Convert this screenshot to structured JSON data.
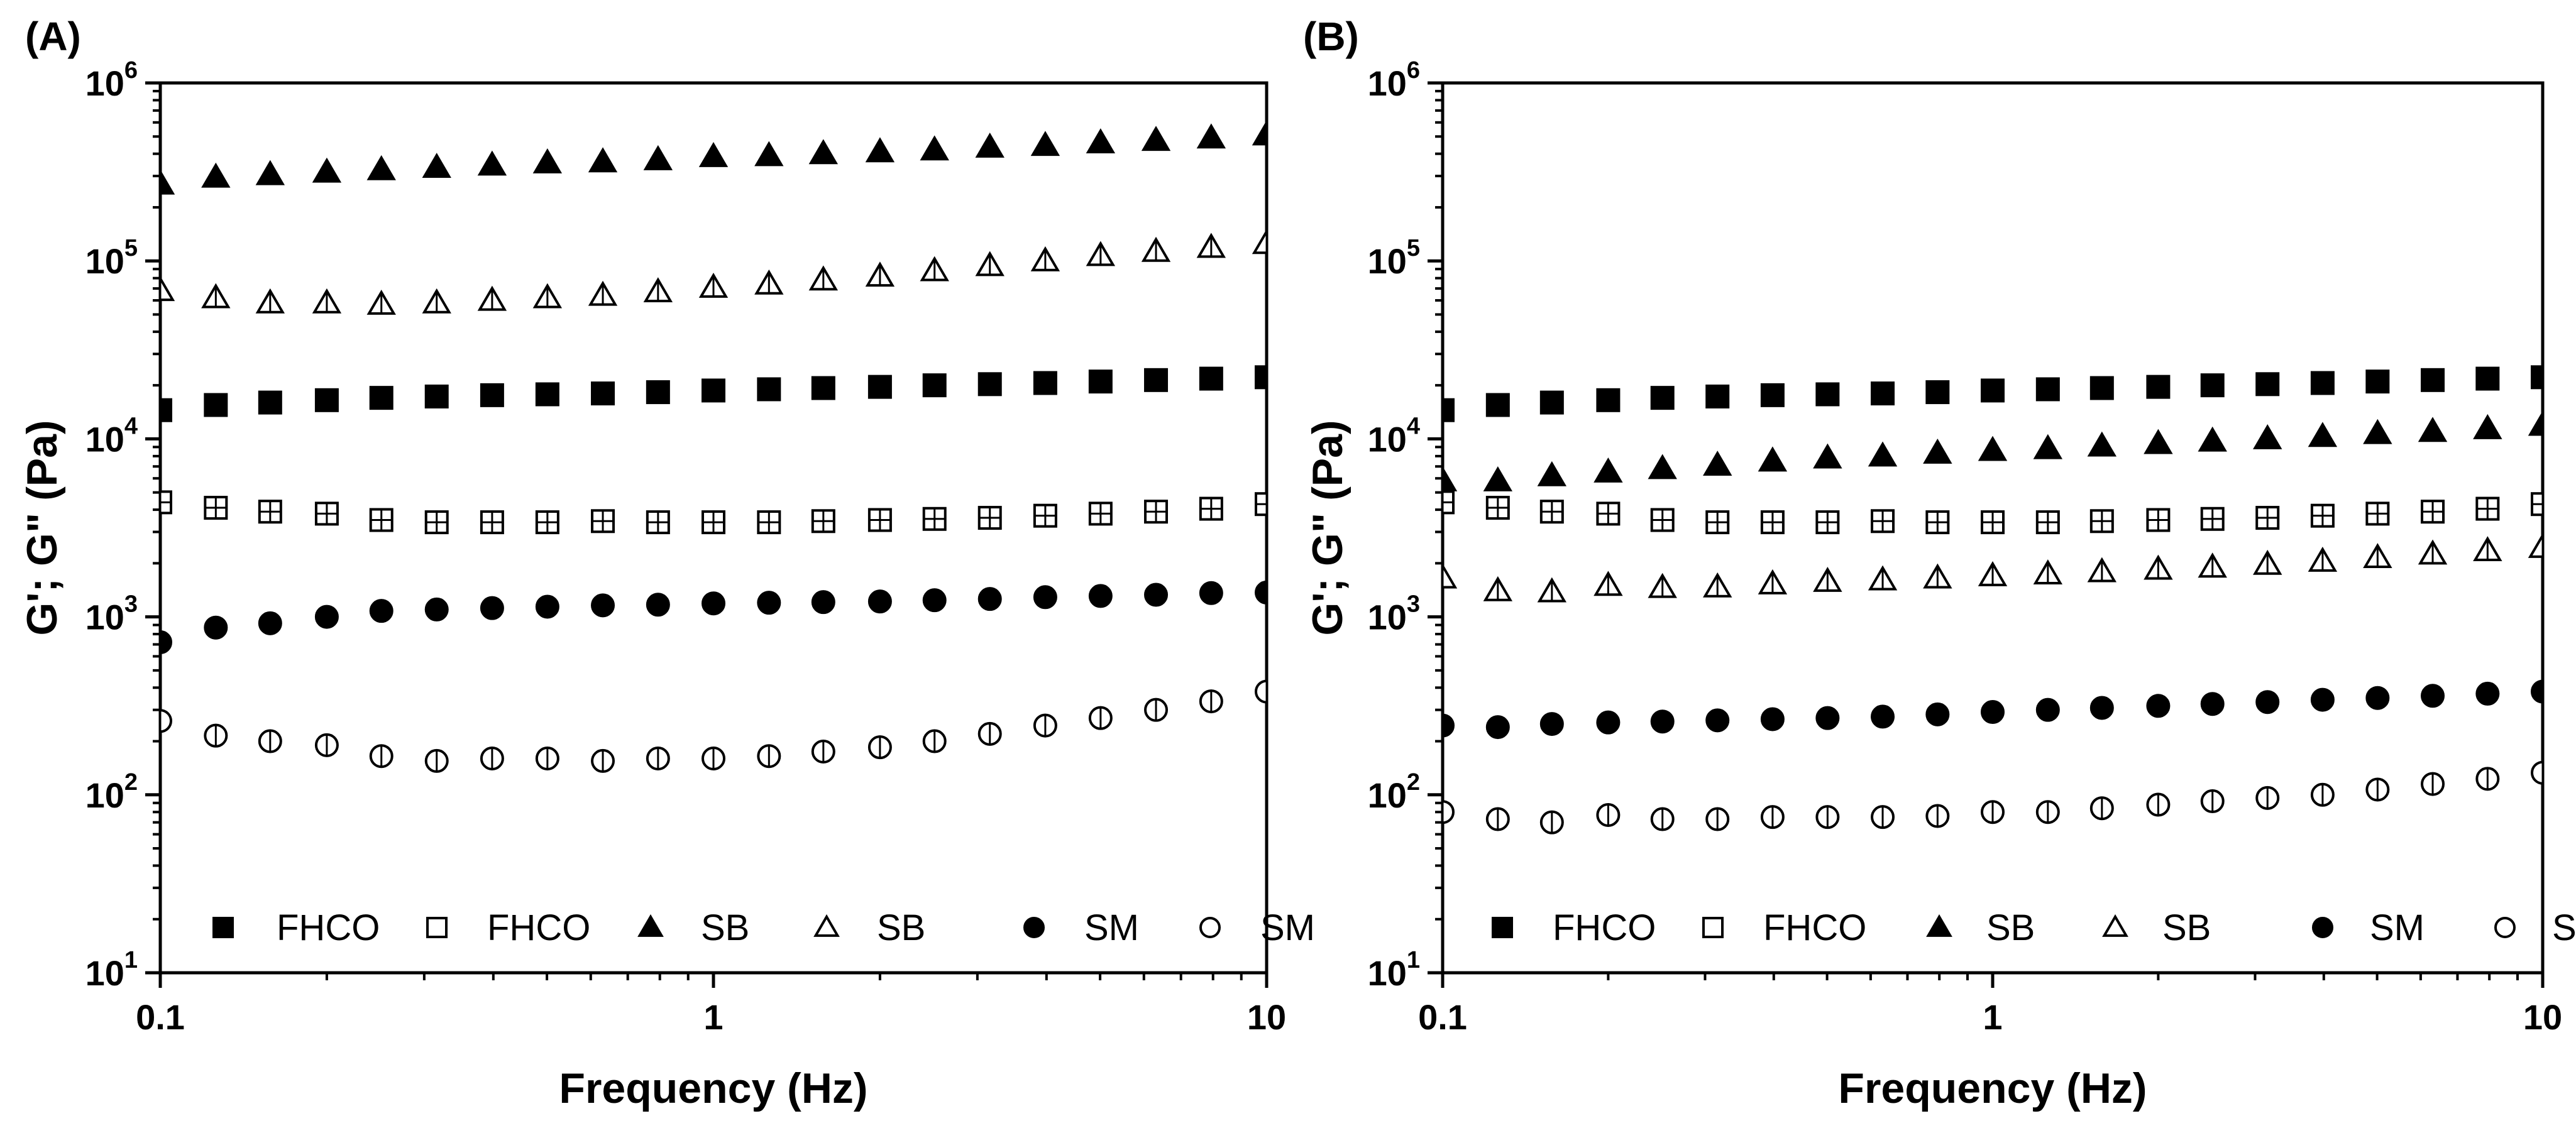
{
  "chart_data": [
    {
      "type": "scatter",
      "panel_label": "(A)",
      "xlabel": "Frequency (Hz)",
      "ylabel": "G'; G\" (Pa)",
      "xscale": "log",
      "yscale": "log",
      "xlim": [
        0.1,
        10
      ],
      "ylim": [
        10,
        1000000
      ],
      "xticks": [
        {
          "value": 0.1,
          "label": "0.1"
        },
        {
          "value": 1,
          "label": "1"
        },
        {
          "value": 10,
          "label": "10"
        }
      ],
      "yticks": [
        {
          "value": 10,
          "base": "10",
          "exp": "1"
        },
        {
          "value": 100,
          "base": "10",
          "exp": "2"
        },
        {
          "value": 1000,
          "base": "10",
          "exp": "3"
        },
        {
          "value": 10000,
          "base": "10",
          "exp": "4"
        },
        {
          "value": 100000,
          "base": "10",
          "exp": "5"
        },
        {
          "value": 1000000,
          "base": "10",
          "exp": "6"
        }
      ],
      "legend_position": "bottom",
      "x": [
        0.1,
        0.126,
        0.158,
        0.2,
        0.251,
        0.316,
        0.398,
        0.501,
        0.631,
        0.794,
        1.0,
        1.26,
        1.58,
        2.0,
        2.51,
        3.16,
        3.98,
        5.01,
        6.31,
        7.94,
        10.0
      ],
      "series": [
        {
          "name": "FHCO",
          "marker": "square",
          "filled": true,
          "values": [
            14500,
            15500,
            16000,
            16500,
            17000,
            17300,
            17600,
            17800,
            18000,
            18300,
            18700,
            19000,
            19300,
            19600,
            20000,
            20300,
            20600,
            21000,
            21400,
            21800,
            22200
          ]
        },
        {
          "name": "FHCO",
          "marker": "square",
          "filled": false,
          "values": [
            4400,
            4100,
            3900,
            3800,
            3500,
            3400,
            3400,
            3400,
            3450,
            3400,
            3400,
            3400,
            3450,
            3500,
            3550,
            3600,
            3700,
            3800,
            3900,
            4050,
            4300
          ]
        },
        {
          "name": "SB",
          "marker": "triangle",
          "filled": true,
          "values": [
            270000,
            295000,
            305000,
            315000,
            325000,
            335000,
            345000,
            355000,
            360000,
            370000,
            385000,
            390000,
            400000,
            410000,
            420000,
            435000,
            445000,
            460000,
            475000,
            490000,
            510000
          ]
        },
        {
          "name": "SB",
          "marker": "triangle",
          "filled": false,
          "values": [
            68000,
            62000,
            58000,
            58000,
            57000,
            58000,
            60000,
            62000,
            64000,
            67000,
            71000,
            74000,
            78000,
            82000,
            88000,
            94000,
            100000,
            107000,
            113000,
            119000,
            125000
          ]
        },
        {
          "name": "SM",
          "marker": "circle",
          "filled": true,
          "values": [
            720,
            870,
            920,
            1000,
            1080,
            1100,
            1120,
            1140,
            1160,
            1170,
            1190,
            1200,
            1210,
            1220,
            1240,
            1260,
            1290,
            1310,
            1330,
            1360,
            1370
          ]
        },
        {
          "name": "SM",
          "marker": "circle",
          "filled": false,
          "values": [
            260,
            215,
            200,
            190,
            165,
            155,
            160,
            160,
            155,
            160,
            160,
            165,
            175,
            185,
            200,
            220,
            245,
            270,
            300,
            335,
            380
          ]
        }
      ]
    },
    {
      "type": "scatter",
      "panel_label": "(B)",
      "xlabel": "Frequency (Hz)",
      "ylabel": "G'; G\" (Pa)",
      "xscale": "log",
      "yscale": "log",
      "xlim": [
        0.1,
        10
      ],
      "ylim": [
        10,
        1000000
      ],
      "xticks": [
        {
          "value": 0.1,
          "label": "0.1"
        },
        {
          "value": 1,
          "label": "1"
        },
        {
          "value": 10,
          "label": "10"
        }
      ],
      "yticks": [
        {
          "value": 10,
          "base": "10",
          "exp": "1"
        },
        {
          "value": 100,
          "base": "10",
          "exp": "2"
        },
        {
          "value": 1000,
          "base": "10",
          "exp": "3"
        },
        {
          "value": 10000,
          "base": "10",
          "exp": "4"
        },
        {
          "value": 100000,
          "base": "10",
          "exp": "5"
        },
        {
          "value": 1000000,
          "base": "10",
          "exp": "6"
        }
      ],
      "legend_position": "bottom",
      "x": [
        0.1,
        0.126,
        0.158,
        0.2,
        0.251,
        0.316,
        0.398,
        0.501,
        0.631,
        0.794,
        1.0,
        1.26,
        1.58,
        2.0,
        2.51,
        3.16,
        3.98,
        5.01,
        6.31,
        7.94,
        10.0
      ],
      "series": [
        {
          "name": "FHCO",
          "marker": "square",
          "filled": true,
          "values": [
            14500,
            15500,
            16000,
            16500,
            17000,
            17300,
            17600,
            17800,
            18000,
            18300,
            18700,
            19000,
            19300,
            19600,
            20000,
            20300,
            20600,
            21000,
            21400,
            21800,
            22200
          ]
        },
        {
          "name": "FHCO",
          "marker": "square",
          "filled": false,
          "values": [
            4400,
            4100,
            3900,
            3800,
            3500,
            3400,
            3400,
            3400,
            3450,
            3400,
            3400,
            3400,
            3450,
            3500,
            3550,
            3600,
            3700,
            3800,
            3900,
            4050,
            4300
          ]
        },
        {
          "name": "SB",
          "marker": "triangle",
          "filled": true,
          "values": [
            5800,
            5800,
            6200,
            6500,
            6800,
            7100,
            7500,
            7800,
            8000,
            8300,
            8600,
            8800,
            9100,
            9400,
            9700,
            10000,
            10300,
            10700,
            11000,
            11400,
            11900
          ]
        },
        {
          "name": "SB",
          "marker": "triangle",
          "filled": false,
          "values": [
            1650,
            1400,
            1380,
            1500,
            1460,
            1470,
            1530,
            1580,
            1610,
            1650,
            1700,
            1740,
            1790,
            1850,
            1900,
            1970,
            2050,
            2150,
            2250,
            2350,
            2450
          ]
        },
        {
          "name": "SM",
          "marker": "circle",
          "filled": true,
          "values": [
            245,
            240,
            250,
            255,
            258,
            262,
            266,
            270,
            275,
            283,
            292,
            300,
            308,
            316,
            324,
            332,
            342,
            350,
            360,
            370,
            380
          ]
        },
        {
          "name": "SM",
          "marker": "circle",
          "filled": false,
          "values": [
            80,
            73,
            70,
            77,
            73,
            73,
            75,
            75,
            75,
            76,
            80,
            80,
            84,
            88,
            92,
            96,
            100,
            107,
            115,
            123,
            133
          ]
        }
      ]
    }
  ]
}
